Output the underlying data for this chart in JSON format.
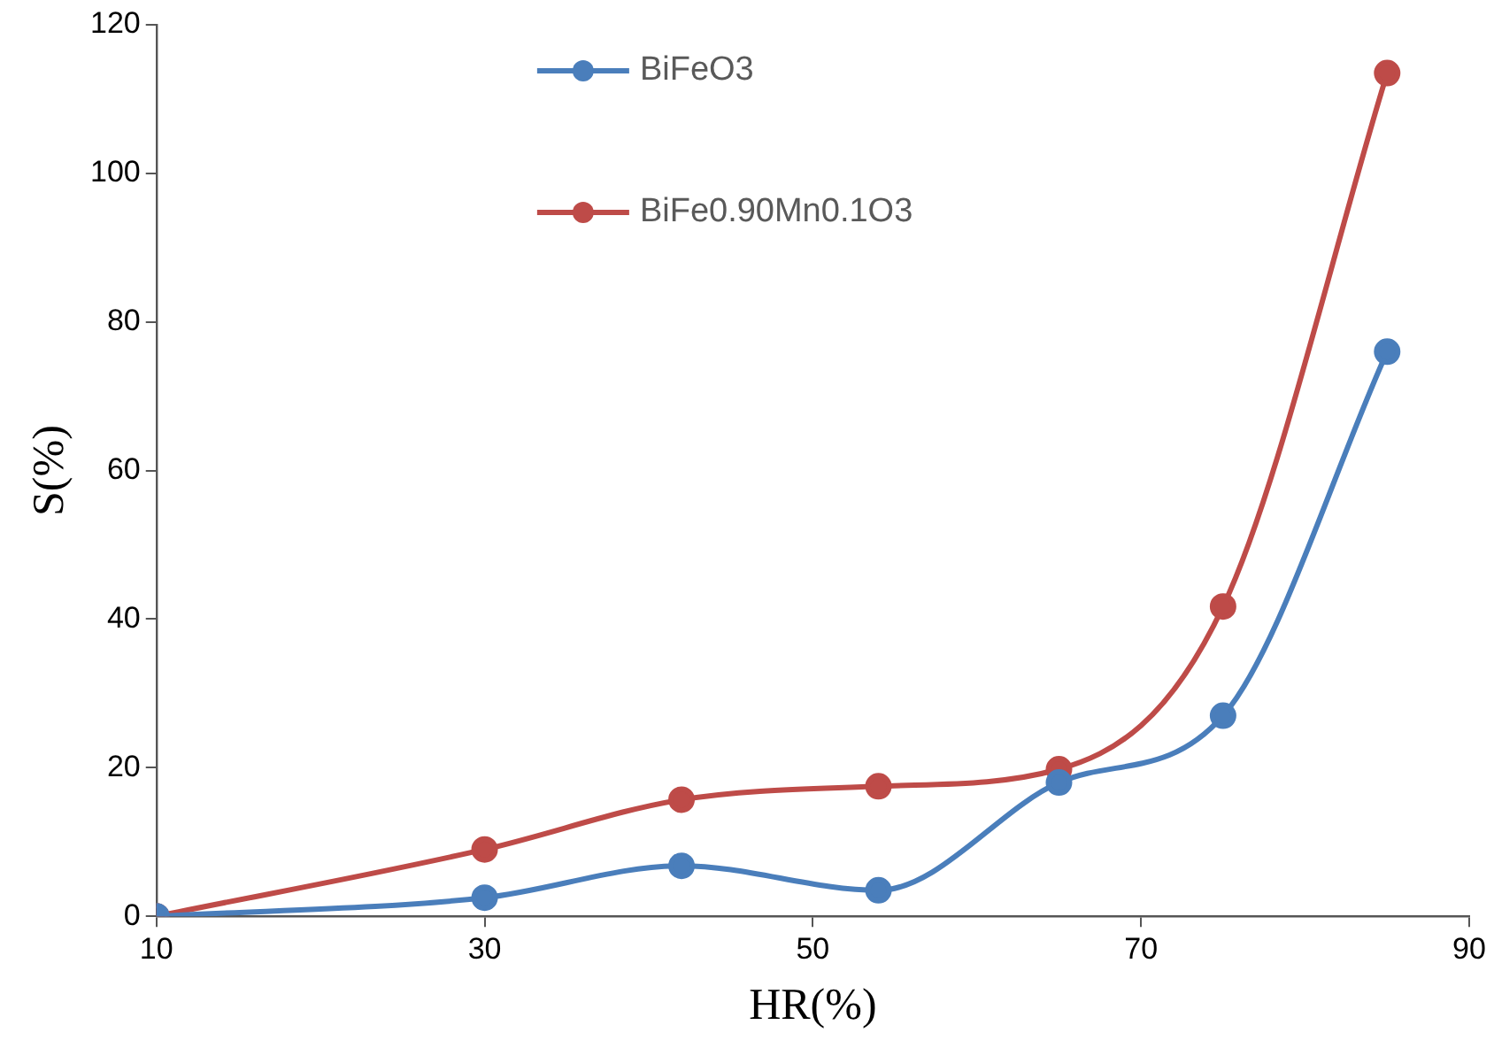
{
  "chart_data": {
    "type": "line",
    "xlabel": "HR(%)",
    "ylabel": "S(%)",
    "x": [
      10,
      30,
      42,
      54,
      65,
      75,
      85
    ],
    "series": [
      {
        "name": "BiFeO3",
        "color": "#4a7ebb",
        "values": [
          0,
          2.5,
          6.8,
          3.5,
          18,
          27,
          76
        ]
      },
      {
        "name": "BiFe0.90Mn0.1O3",
        "color": "#be4b48",
        "values": [
          0,
          9,
          15.7,
          17.5,
          19.8,
          41.7,
          113.5
        ]
      }
    ],
    "xlim": [
      10,
      90
    ],
    "xticks": [
      10,
      30,
      50,
      70,
      90
    ],
    "ylim": [
      0,
      120
    ],
    "yticks": [
      0,
      20,
      40,
      60,
      80,
      100,
      120
    ],
    "grid": false,
    "legend": "top left",
    "marker": "circle",
    "line_style": "solid"
  }
}
